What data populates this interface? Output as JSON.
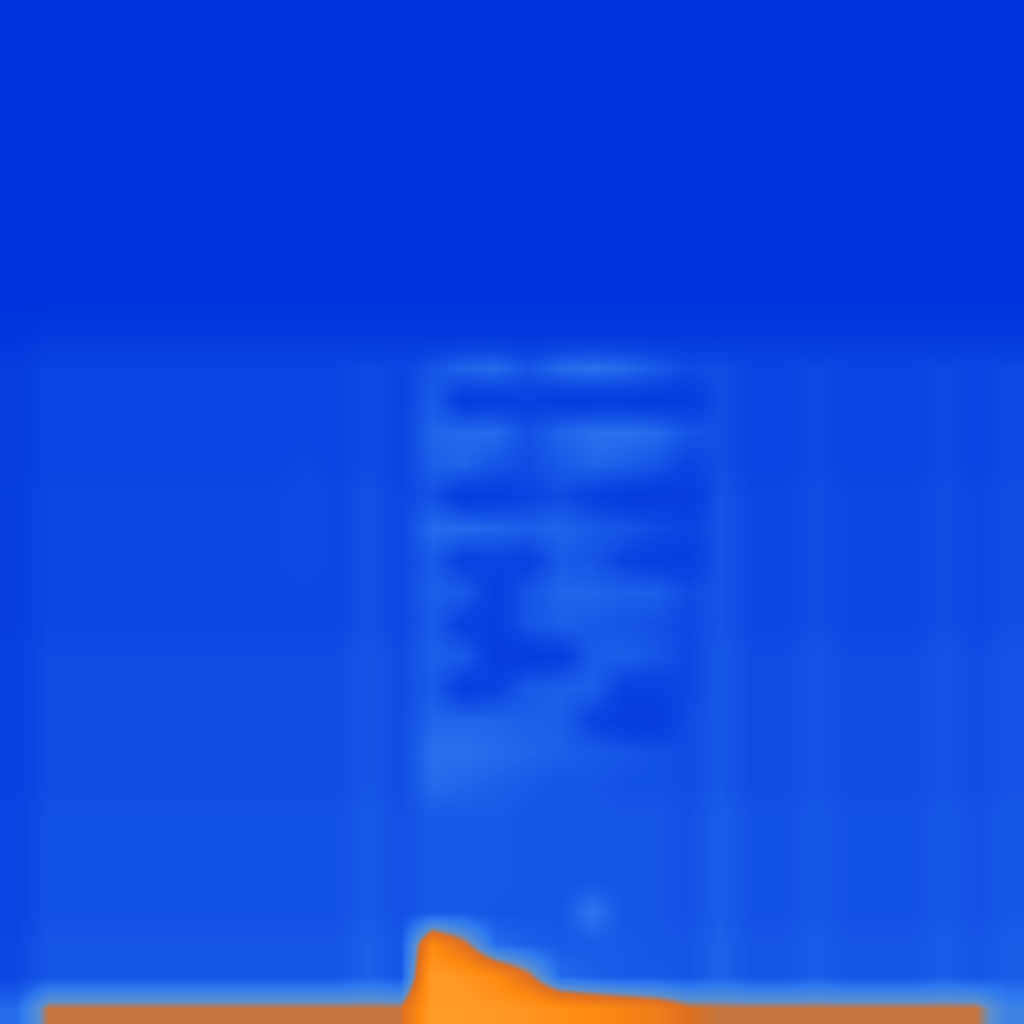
{
  "chart_data": {
    "type": "heatmap",
    "tick_labels": false,
    "zlim": [
      0,
      100
    ],
    "cells": [
      [
        0,
        0,
        0,
        0,
        0,
        0,
        0,
        0,
        0,
        0,
        0,
        0,
        0,
        0,
        0,
        0,
        0,
        0,
        0,
        0,
        0,
        0,
        0,
        0,
        0,
        0,
        0,
        0,
        0,
        0,
        0,
        0
      ],
      [
        0,
        0,
        0,
        0,
        0,
        0,
        0,
        0,
        0,
        0,
        0,
        0,
        0,
        0,
        0,
        0,
        0,
        0,
        0,
        0,
        0,
        0,
        0,
        0,
        0,
        0,
        0,
        0,
        0,
        0,
        0,
        0
      ],
      [
        0,
        0,
        0,
        0,
        0,
        0,
        0,
        0,
        0,
        0,
        0,
        0,
        0,
        0,
        0,
        0,
        0,
        0,
        0,
        0,
        0,
        0,
        0,
        0,
        0,
        0,
        0,
        0,
        0,
        0,
        0,
        0
      ],
      [
        0,
        0,
        0,
        0,
        0,
        0,
        0,
        0,
        0,
        0,
        0,
        0,
        0,
        0,
        0,
        0,
        0,
        0,
        0,
        0,
        0,
        0,
        0,
        0,
        0,
        0,
        0,
        0,
        0,
        0,
        0,
        0
      ],
      [
        0,
        0,
        0,
        0,
        0,
        0,
        0,
        0,
        0,
        0,
        0,
        0,
        0,
        0,
        0,
        0,
        0,
        0,
        0,
        0,
        0,
        0,
        0,
        0,
        0,
        0,
        0,
        0,
        0,
        0,
        0,
        0
      ],
      [
        0,
        0,
        0,
        0,
        0,
        0,
        0,
        0,
        0,
        0,
        0,
        0,
        0,
        0,
        0,
        0,
        0,
        0,
        0,
        0,
        0,
        0,
        0,
        0,
        0,
        0,
        0,
        0,
        0,
        0,
        0,
        0
      ],
      [
        0,
        0,
        0,
        0,
        0,
        0,
        0,
        0,
        0,
        0,
        0,
        0,
        0,
        0,
        0,
        0,
        0,
        0,
        0,
        0,
        0,
        0,
        0,
        0,
        0,
        0,
        0,
        0,
        0,
        0,
        0,
        0
      ],
      [
        0,
        0,
        0,
        0,
        0,
        0,
        0,
        0,
        0,
        0,
        0,
        0,
        0,
        0,
        0,
        0,
        0,
        0,
        0,
        0,
        0,
        0,
        0,
        0,
        0,
        0,
        0,
        0,
        0,
        0,
        0,
        0
      ],
      [
        0,
        0,
        0,
        0,
        0,
        0,
        0,
        0,
        0,
        0,
        0,
        0,
        0,
        0,
        0,
        0,
        0,
        0,
        0,
        0,
        0,
        0,
        0,
        0,
        0,
        0,
        0,
        0,
        0,
        0,
        0,
        0
      ],
      [
        0,
        0,
        0,
        0,
        0,
        0,
        0,
        0,
        0,
        0,
        0,
        0,
        0,
        0,
        0,
        0,
        0,
        0,
        0,
        0,
        0,
        0,
        0,
        0,
        0,
        0,
        0,
        0,
        0,
        0,
        0,
        0
      ],
      [
        2,
        6,
        6,
        6,
        6,
        6,
        6,
        6,
        6,
        6,
        6,
        6,
        6,
        6,
        6,
        6,
        6,
        6,
        6,
        6,
        6,
        6,
        6,
        6,
        6,
        6,
        6,
        6,
        6,
        6,
        6,
        6
      ],
      [
        8,
        14,
        14,
        14,
        14,
        14,
        14,
        14,
        14,
        14,
        14,
        18,
        14,
        22,
        28,
        30,
        22,
        30,
        32,
        30,
        24,
        18,
        19,
        14,
        14,
        17,
        14,
        14,
        14,
        17,
        14,
        17
      ],
      [
        8,
        14,
        14,
        14,
        14,
        14,
        14,
        14,
        14,
        14,
        14,
        18,
        14,
        24,
        8,
        10,
        12,
        8,
        8,
        8,
        8,
        8,
        19,
        14,
        14,
        17,
        14,
        14,
        14,
        17,
        14,
        17
      ],
      [
        8,
        14,
        14,
        14,
        14,
        14,
        14,
        14,
        14,
        14,
        14,
        18,
        14,
        28,
        30,
        30,
        20,
        28,
        32,
        32,
        30,
        22,
        19,
        14,
        14,
        17,
        14,
        14,
        14,
        17,
        14,
        17
      ],
      [
        8,
        14,
        14,
        14,
        14,
        14,
        14,
        14,
        14,
        16,
        14,
        18,
        14,
        26,
        28,
        22,
        18,
        24,
        28,
        26,
        22,
        14,
        19,
        14,
        14,
        17,
        14,
        14,
        14,
        17,
        14,
        17
      ],
      [
        10,
        16,
        16,
        16,
        16,
        16,
        16,
        16,
        16,
        18,
        16,
        20,
        16,
        20,
        8,
        10,
        14,
        18,
        12,
        8,
        8,
        8,
        21,
        16,
        16,
        19,
        16,
        16,
        16,
        19,
        16,
        19
      ],
      [
        10,
        16,
        16,
        16,
        16,
        16,
        16,
        16,
        16,
        18,
        16,
        20,
        16,
        30,
        30,
        28,
        26,
        28,
        24,
        22,
        18,
        14,
        21,
        16,
        16,
        19,
        16,
        16,
        16,
        19,
        16,
        19
      ],
      [
        10,
        16,
        16,
        16,
        16,
        16,
        16,
        16,
        16,
        18,
        16,
        20,
        16,
        24,
        12,
        14,
        12,
        24,
        22,
        14,
        10,
        10,
        21,
        16,
        16,
        19,
        16,
        16,
        16,
        19,
        16,
        19
      ],
      [
        10,
        16,
        16,
        16,
        16,
        16,
        16,
        16,
        16,
        16,
        16,
        20,
        16,
        26,
        24,
        10,
        22,
        28,
        28,
        26,
        26,
        18,
        21,
        16,
        16,
        19,
        16,
        16,
        16,
        19,
        16,
        19
      ],
      [
        10,
        16,
        16,
        16,
        16,
        16,
        16,
        16,
        16,
        16,
        16,
        20,
        16,
        24,
        12,
        10,
        22,
        26,
        24,
        22,
        20,
        16,
        21,
        16,
        16,
        19,
        16,
        16,
        16,
        19,
        16,
        19
      ],
      [
        12,
        18,
        18,
        18,
        18,
        18,
        18,
        18,
        18,
        18,
        18,
        22,
        18,
        26,
        24,
        8,
        8,
        10,
        24,
        26,
        22,
        16,
        23,
        18,
        18,
        21,
        18,
        18,
        18,
        21,
        18,
        21
      ],
      [
        12,
        18,
        18,
        18,
        18,
        18,
        18,
        18,
        18,
        18,
        18,
        22,
        18,
        24,
        10,
        14,
        24,
        26,
        26,
        12,
        12,
        16,
        23,
        18,
        18,
        21,
        18,
        18,
        18,
        21,
        18,
        21
      ],
      [
        12,
        18,
        18,
        18,
        18,
        18,
        18,
        18,
        18,
        18,
        18,
        22,
        18,
        28,
        28,
        28,
        26,
        26,
        14,
        8,
        8,
        18,
        23,
        18,
        18,
        21,
        18,
        18,
        18,
        21,
        18,
        21
      ],
      [
        12,
        18,
        18,
        18,
        18,
        18,
        18,
        18,
        18,
        18,
        18,
        22,
        18,
        32,
        32,
        30,
        28,
        26,
        24,
        22,
        20,
        18,
        23,
        18,
        18,
        21,
        18,
        18,
        18,
        21,
        18,
        21
      ],
      [
        12,
        18,
        18,
        18,
        18,
        18,
        18,
        18,
        18,
        18,
        18,
        22,
        18,
        30,
        28,
        26,
        24,
        22,
        22,
        20,
        20,
        18,
        23,
        18,
        18,
        21,
        18,
        18,
        18,
        21,
        18,
        21
      ],
      [
        14,
        20,
        20,
        20,
        20,
        20,
        20,
        20,
        20,
        20,
        20,
        24,
        20,
        24,
        24,
        24,
        22,
        22,
        22,
        22,
        22,
        20,
        25,
        20,
        20,
        23,
        20,
        20,
        20,
        23,
        20,
        23
      ],
      [
        14,
        20,
        20,
        20,
        20,
        20,
        20,
        20,
        20,
        20,
        20,
        24,
        20,
        24,
        24,
        24,
        22,
        22,
        22,
        22,
        22,
        20,
        25,
        20,
        20,
        23,
        20,
        20,
        20,
        23,
        20,
        23
      ],
      [
        14,
        20,
        20,
        20,
        20,
        20,
        20,
        20,
        20,
        20,
        20,
        24,
        20,
        24,
        24,
        24,
        22,
        22,
        22,
        22,
        22,
        20,
        25,
        20,
        20,
        23,
        20,
        20,
        20,
        23,
        20,
        23
      ],
      [
        14,
        20,
        20,
        20,
        20,
        20,
        20,
        20,
        20,
        20,
        20,
        24,
        20,
        24,
        24,
        22,
        22,
        22,
        34,
        22,
        22,
        20,
        25,
        20,
        20,
        23,
        20,
        20,
        20,
        23,
        20,
        23
      ],
      [
        16,
        22,
        22,
        22,
        22,
        22,
        22,
        22,
        22,
        22,
        22,
        26,
        22,
        80,
        60,
        30,
        26,
        24,
        24,
        24,
        22,
        22,
        27,
        22,
        22,
        25,
        22,
        22,
        22,
        25,
        22,
        25
      ],
      [
        16,
        22,
        22,
        22,
        22,
        22,
        22,
        22,
        22,
        22,
        22,
        26,
        22,
        95,
        90,
        80,
        60,
        30,
        26,
        24,
        24,
        22,
        27,
        22,
        22,
        25,
        22,
        22,
        22,
        25,
        22,
        25
      ],
      [
        30,
        58,
        58,
        58,
        58,
        58,
        58,
        58,
        58,
        58,
        58,
        58,
        58,
        95,
        95,
        92,
        90,
        85,
        80,
        75,
        70,
        60,
        58,
        58,
        58,
        58,
        58,
        58,
        58,
        58,
        58,
        40
      ]
    ]
  }
}
